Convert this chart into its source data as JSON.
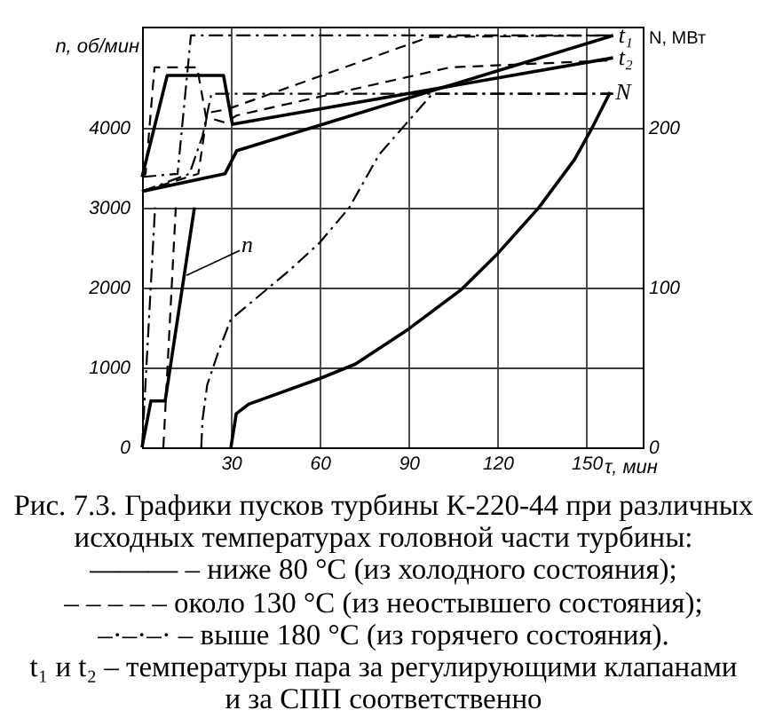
{
  "chart_data": {
    "type": "line",
    "title": "Рис. 7.3. Графики пусков турбины К-220-44 при различных исходных температурах головной части турбины:",
    "xlabel": "τ, мин",
    "ylabel": "n, об/мин",
    "y2label": "N, МВт",
    "xlim": [
      0,
      169
    ],
    "xticks": [
      30,
      60,
      90,
      120,
      150
    ],
    "ylim": [
      0,
      5260
    ],
    "yticks": [
      0,
      1000,
      2000,
      3000,
      4000
    ],
    "y2lim": [
      0,
      263
    ],
    "y2ticks": [
      0,
      100,
      200
    ],
    "grid": true,
    "annotations": [
      {
        "text": "n",
        "x": 15,
        "y": 2150
      },
      "——— – ниже 80 °С (из холодного состояния);",
      "– – – – – около 130 °С (из неостывшего состояния);",
      "–·–·–· – выше 180 °С (из горячего состояния).",
      "t₁ и t₂ – температуры пара за регулирующими клапанами и за СПП соответственно"
    ],
    "series": [
      {
        "color": "#000000",
        "line_style": "solid",
        "x": [
          0,
          3,
          7.8,
          17.7
        ],
        "values": [
          0,
          580,
          580,
          3000
        ]
      },
      {
        "color": "#000000",
        "line_style": "dashed",
        "x": [
          7.2,
          11.4
        ],
        "values": [
          0,
          3000
        ]
      },
      {
        "color": "#000000",
        "line_style": "dashdot",
        "x": [
          0,
          4.4
        ],
        "values": [
          0,
          3000
        ]
      },
      {
        "name": "t₁",
        "color": "#000000",
        "line_style": "solid",
        "x": [
          0,
          28,
          32,
          159
        ],
        "values": [
          3200,
          3420,
          3710,
          5150
        ]
      },
      {
        "name": "t₂",
        "color": "#000000",
        "line_style": "solid",
        "x": [
          0,
          8.5,
          27.5,
          30.5,
          159
        ],
        "values": [
          3380,
          4650,
          4650,
          4040,
          4870
        ]
      },
      {
        "color": "#000000",
        "line_style": "dashed",
        "x": [
          0,
          19,
          22,
          29,
          97,
          159
        ],
        "values": [
          3200,
          3420,
          4180,
          4230,
          5130,
          5150
        ]
      },
      {
        "color": "#000000",
        "line_style": "dashed",
        "x": [
          0,
          1.2,
          4.2,
          18.6,
          21.6,
          28,
          32,
          104,
          159
        ],
        "values": [
          3380,
          3420,
          4750,
          4750,
          4130,
          4060,
          4150,
          4750,
          4840
        ]
      },
      {
        "color": "#000000",
        "line_style": "dashdot",
        "x": [
          0,
          12,
          16.5,
          159
        ],
        "values": [
          3380,
          3420,
          5150,
          5150
        ]
      },
      {
        "color": "#000000",
        "line_style": "dashdot",
        "x": [
          0,
          16,
          20.4,
          23.4,
          159
        ],
        "values": [
          3200,
          3420,
          3890,
          4420,
          4420
        ]
      },
      {
        "name": "N",
        "axis": "y2",
        "color": "#000000",
        "line_style": "solid",
        "x": [
          30,
          31.8,
          36,
          60,
          72,
          90,
          108,
          120,
          134,
          146,
          152,
          158
        ],
        "values": [
          0,
          21,
          27,
          43,
          52,
          74,
          99,
          121,
          150,
          180,
          200,
          222
        ]
      },
      {
        "axis": "y2",
        "color": "#000000",
        "line_style": "dashdot",
        "x": [
          20,
          20.4,
          22,
          26,
          30,
          50,
          60,
          70,
          80,
          98,
          159
        ],
        "values": [
          0,
          17,
          39,
          61,
          80,
          111,
          128,
          150,
          183,
          221,
          221
        ]
      }
    ]
  }
}
